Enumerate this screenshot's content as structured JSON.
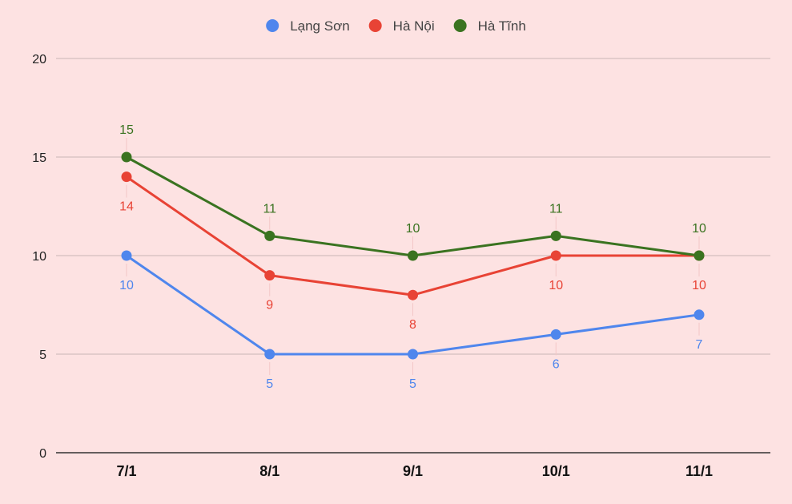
{
  "chart_data": {
    "type": "line",
    "title": "",
    "xlabel": "",
    "ylabel": "",
    "categories": [
      "7/1",
      "8/1",
      "9/1",
      "10/1",
      "11/1"
    ],
    "ylim": [
      0,
      20
    ],
    "yticks": [
      0,
      5,
      10,
      15,
      20
    ],
    "grid": true,
    "legend_position": "top-center",
    "series": [
      {
        "name": "Lạng Sơn",
        "color": "#4f86ed",
        "values": [
          10,
          5,
          5,
          6,
          7
        ],
        "label_position": [
          "below",
          "below",
          "below",
          "below",
          "below"
        ]
      },
      {
        "name": "Hà Nội",
        "color": "#e84335",
        "values": [
          14,
          9,
          8,
          10,
          10
        ],
        "label_position": [
          "below",
          "below",
          "below",
          "below",
          "below"
        ]
      },
      {
        "name": "Hà Tĩnh",
        "color": "#3a7320",
        "values": [
          15,
          11,
          10,
          11,
          10
        ],
        "label_position": [
          "above",
          "above",
          "above",
          "above",
          "above"
        ]
      }
    ]
  }
}
